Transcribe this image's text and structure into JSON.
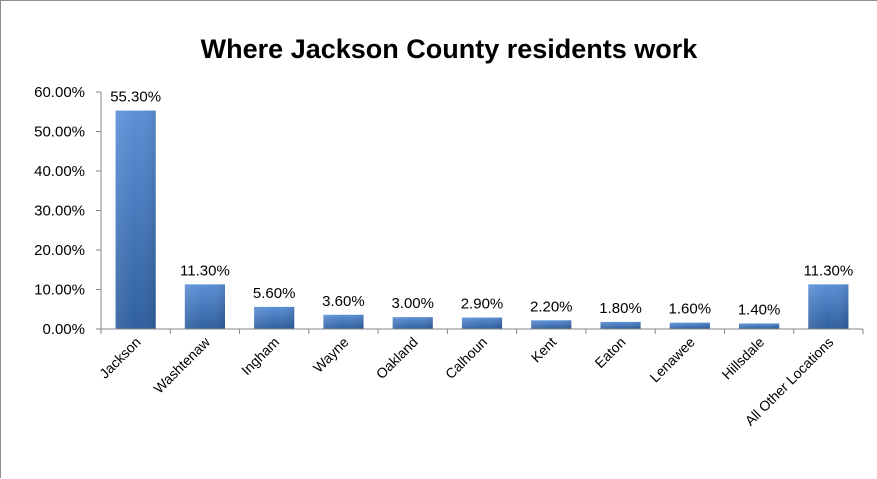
{
  "chart_data": {
    "type": "bar",
    "title": "Where Jackson County residents work",
    "xlabel": "",
    "ylabel": "",
    "categories": [
      "Jackson",
      "Washtenaw",
      "Ingham",
      "Wayne",
      "Oakland",
      "Calhoun",
      "Kent",
      "Eaton",
      "Lenawee",
      "Hillsdale",
      "All Other Locations"
    ],
    "values": [
      55.3,
      11.3,
      5.6,
      3.6,
      3.0,
      2.9,
      2.2,
      1.8,
      1.6,
      1.4,
      11.3
    ],
    "data_labels": [
      "55.30%",
      "11.30%",
      "5.60%",
      "3.60%",
      "3.00%",
      "2.90%",
      "2.20%",
      "1.80%",
      "1.60%",
      "1.40%",
      "11.30%"
    ],
    "ylim": [
      0,
      60
    ],
    "y_ticks": [
      0,
      10,
      20,
      30,
      40,
      50,
      60
    ],
    "y_tick_labels": [
      "0.00%",
      "10.00%",
      "20.00%",
      "30.00%",
      "40.00%",
      "50.00%",
      "60.00%"
    ],
    "grid": false,
    "legend": "none",
    "colors": {
      "bar_top": "#5b8fd6",
      "bar_bottom": "#2f5f9e",
      "axis": "#868686"
    }
  }
}
